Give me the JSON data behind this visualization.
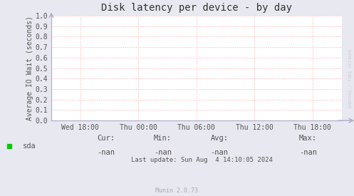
{
  "title": "Disk latency per device - by day",
  "ylabel": "Average IO Wait (seconds)",
  "ylim": [
    0.0,
    1.0
  ],
  "yticks": [
    0.0,
    0.1,
    0.2,
    0.3,
    0.4,
    0.5,
    0.6,
    0.7,
    0.8,
    0.9,
    1.0
  ],
  "xtick_labels": [
    "Wed 18:00",
    "Thu 00:00",
    "Thu 06:00",
    "Thu 12:00",
    "Thu 18:00"
  ],
  "xtick_positions": [
    0.1,
    0.3,
    0.5,
    0.7,
    0.9
  ],
  "bg_color": "#e8e8f0",
  "plot_bg_color": "#ffffff",
  "grid_color": "#ffaaaa",
  "border_color": "#aaaacc",
  "title_color": "#333333",
  "label_color": "#555555",
  "tick_color": "#555555",
  "legend_label": "sda",
  "legend_color": "#00cc00",
  "cur_label": "Cur:",
  "cur_val": "-nan",
  "min_label": "Min:",
  "min_val": "-nan",
  "avg_label": "Avg:",
  "avg_val": "-nan",
  "max_label": "Max:",
  "max_val": "-nan",
  "last_update": "Last update: Sun Aug  4 14:10:05 2024",
  "munin_label": "Munin 2.0.73",
  "watermark": "RRDTOOL / TOBI OETIKER",
  "watermark_color": "#ccccdd",
  "arrow_color": "#aaaacc",
  "font_family": "DejaVu Sans Mono",
  "title_fontsize": 10,
  "tick_fontsize": 7,
  "legend_fontsize": 7.5,
  "footer_fontsize": 6.5,
  "munin_fontsize": 6
}
